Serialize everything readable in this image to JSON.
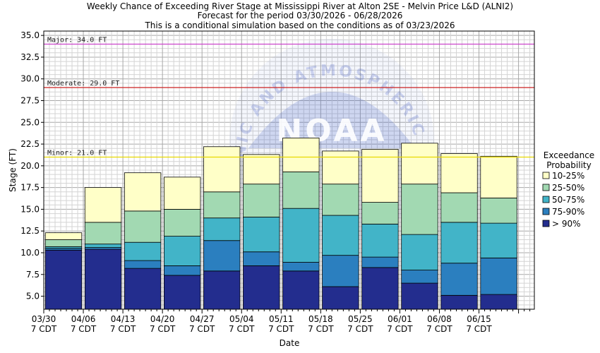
{
  "chart_data": {
    "type": "bar",
    "title_lines": [
      "Weekly Chance of Exceeding River Stage at Mississippi River at Alton 2SE - Melvin Price L&D (ALNI2)",
      "Forecast for the period 03/30/2026 - 06/28/2026",
      "This is a conditional simulation based on the conditions as of 03/23/2026"
    ],
    "xlabel": "Date",
    "ylabel": "Stage (FT)",
    "ylim": [
      3.5,
      35.5
    ],
    "y_ticks": [
      5.0,
      7.5,
      10.0,
      12.5,
      15.0,
      17.5,
      20.0,
      22.5,
      25.0,
      27.5,
      30.0,
      32.5,
      35.0
    ],
    "y_tick_labels": [
      "5.0",
      "7.5",
      "10.0",
      "12.5",
      "15.0",
      "17.5",
      "20.0",
      "22.5",
      "25.0",
      "27.5",
      "30.0",
      "32.5",
      "35.0"
    ],
    "x_tick_labels": [
      {
        "date": "03/30",
        "tz": "7 CDT"
      },
      {
        "date": "04/06",
        "tz": "7 CDT"
      },
      {
        "date": "04/13",
        "tz": "7 CDT"
      },
      {
        "date": "04/20",
        "tz": "7 CDT"
      },
      {
        "date": "04/27",
        "tz": "7 CDT"
      },
      {
        "date": "05/04",
        "tz": "7 CDT"
      },
      {
        "date": "05/11",
        "tz": "7 CDT"
      },
      {
        "date": "05/18",
        "tz": "7 CDT"
      },
      {
        "date": "05/25",
        "tz": "7 CDT"
      },
      {
        "date": "06/01",
        "tz": "7 CDT"
      },
      {
        "date": "06/08",
        "tz": "7 CDT"
      },
      {
        "date": "06/15",
        "tz": "7 CDT"
      }
    ],
    "weeks": 12,
    "weeks_axis_extent": 12.4,
    "bars": [
      [
        10.3,
        10.5,
        10.7,
        11.5,
        12.3
      ],
      [
        10.4,
        10.6,
        11.0,
        13.5,
        17.5
      ],
      [
        8.2,
        9.1,
        11.2,
        14.8,
        19.2
      ],
      [
        7.4,
        8.5,
        11.9,
        15.0,
        18.7
      ],
      [
        7.9,
        11.4,
        14.0,
        17.0,
        22.2
      ],
      [
        8.5,
        10.1,
        14.1,
        17.9,
        21.3
      ],
      [
        7.9,
        8.9,
        15.1,
        19.3,
        23.2
      ],
      [
        6.1,
        9.7,
        14.3,
        17.9,
        21.7
      ],
      [
        8.3,
        9.5,
        13.3,
        15.8,
        21.9
      ],
      [
        6.5,
        8.0,
        12.1,
        17.9,
        22.6
      ],
      [
        5.1,
        8.8,
        13.5,
        16.9,
        21.4
      ],
      [
        5.2,
        9.4,
        13.4,
        16.3,
        21.1
      ]
    ],
    "thresholds": [
      {
        "name": "Major",
        "label": "Major: 34.0 FT",
        "value": 34.0,
        "color": "#cc44cc"
      },
      {
        "name": "Moderate",
        "label": "Moderate: 29.0 FT",
        "value": 29.0,
        "color": "#cc2222"
      },
      {
        "name": "Minor",
        "label": "Minor: 21.0 FT",
        "value": 21.0,
        "color": "#e8d800"
      }
    ],
    "legend": {
      "title_lines": [
        "Exceedance",
        "Probability"
      ],
      "position": "right",
      "items": [
        {
          "label": "10-25%",
          "color": "#ffffc8"
        },
        {
          "label": "25-50%",
          "color": "#a2d9b2"
        },
        {
          "label": "50-75%",
          "color": "#42b4c8"
        },
        {
          "label": "75-90%",
          "color": "#2b7fbf"
        },
        {
          "label": "> 90%",
          "color": "#232d8e"
        }
      ]
    },
    "segment_colors_bottom_up": [
      "#232d8e",
      "#2b7fbf",
      "#42b4c8",
      "#a2d9b2",
      "#ffffc8"
    ],
    "watermark": {
      "text": "NATIONAL OCEANIC AND ATMOSPHERIC ADMINISTRATION",
      "logo_text": "NOAA",
      "color": "#4a63c8"
    }
  }
}
